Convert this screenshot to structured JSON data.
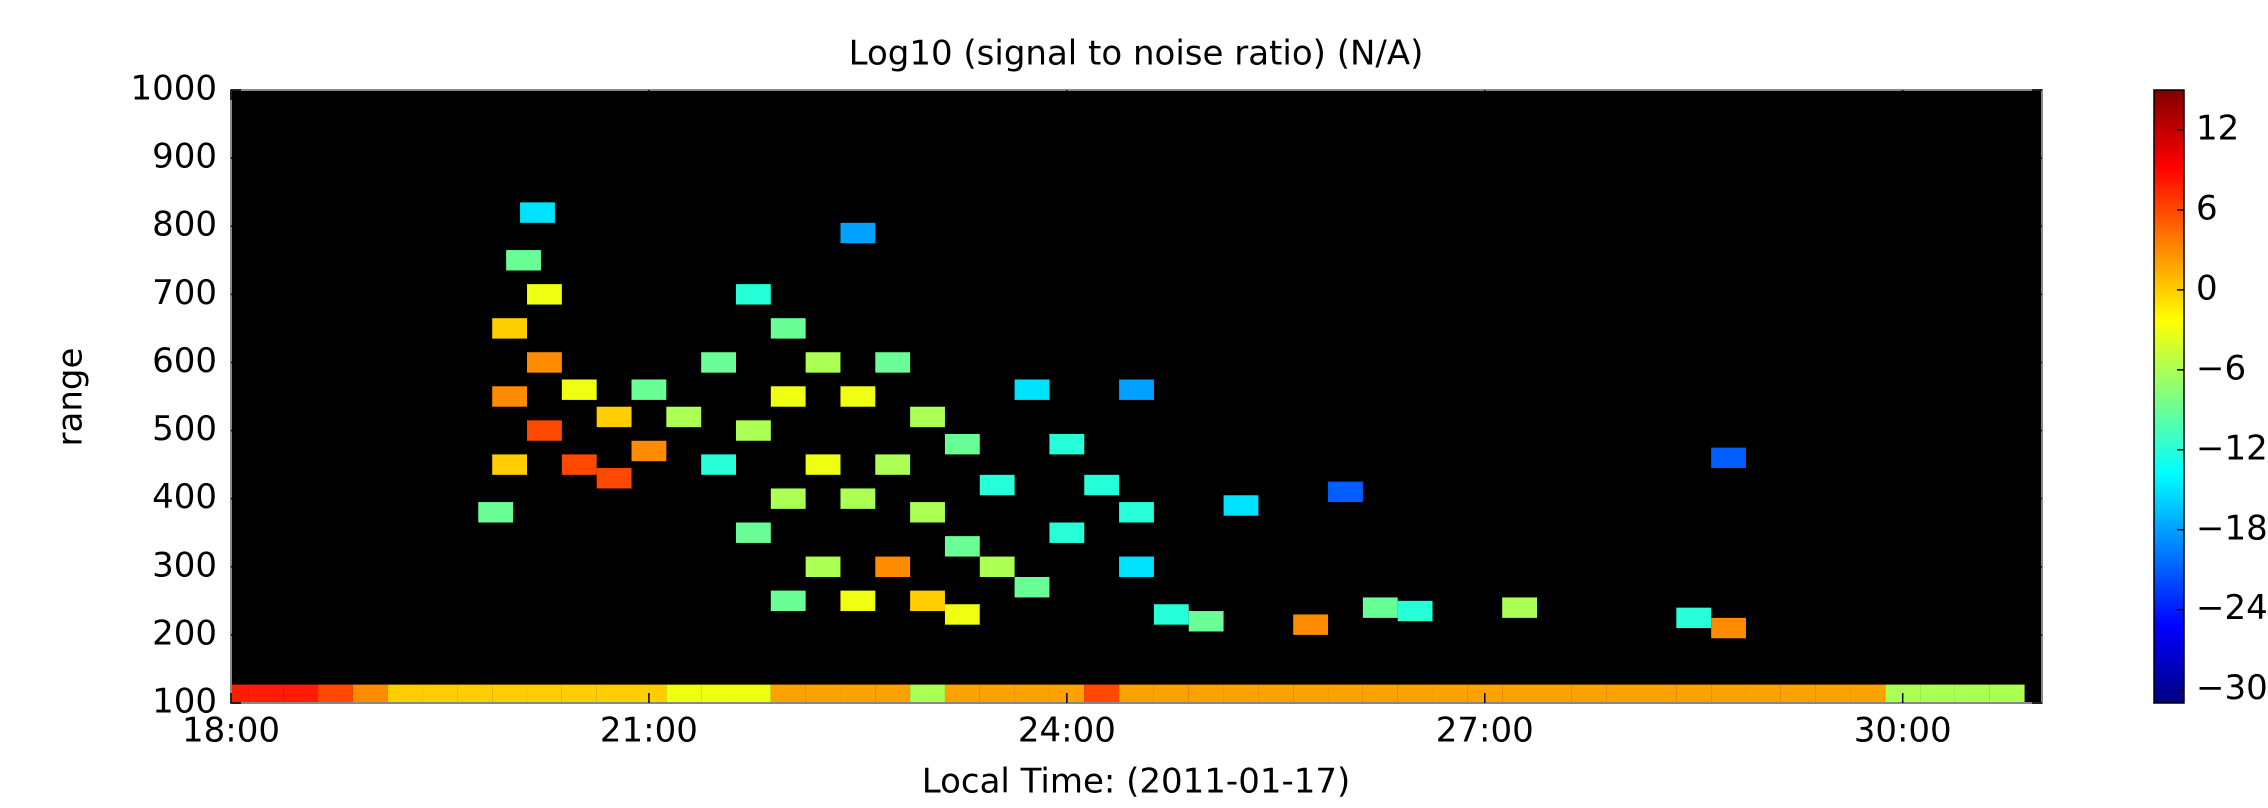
{
  "chart_data": {
    "type": "heatmap",
    "title": "Log10 (signal to noise ratio) (N/A)",
    "x_label": "Local Time: (2011-01-17)",
    "y_label": "range",
    "xlim": [
      18,
      31
    ],
    "xticks": [
      {
        "value": 18,
        "label": "18:00"
      },
      {
        "value": 21,
        "label": "21:00"
      },
      {
        "value": 24,
        "label": "24:00"
      },
      {
        "value": 27,
        "label": "27:00"
      },
      {
        "value": 30,
        "label": "30:00"
      }
    ],
    "ylim": [
      100,
      1000
    ],
    "yticks": [
      100,
      200,
      300,
      400,
      500,
      600,
      700,
      800,
      900,
      1000
    ],
    "colormap": "jet",
    "clim": [
      -31,
      15
    ],
    "cticks": [
      {
        "value": -30,
        "label": "−30"
      },
      {
        "value": -24,
        "label": "−24"
      },
      {
        "value": -18,
        "label": "−18"
      },
      {
        "value": -12,
        "label": "−12"
      },
      {
        "value": -6,
        "label": "−6"
      },
      0,
      6,
      12
    ],
    "background": "#000000",
    "x": [
      18,
      18.25,
      18.5,
      18.75,
      19,
      19.25,
      19.5,
      19.75,
      20,
      20.25,
      20.5,
      20.75,
      21,
      21.25,
      21.5,
      21.75,
      22,
      22.25,
      22.5,
      22.75,
      23,
      23.25,
      23.5,
      23.75,
      24,
      24.25,
      24.5,
      24.75,
      25,
      25.25,
      25.5,
      25.75,
      26,
      26.25,
      26.5,
      26.75,
      27,
      27.25,
      27.5,
      27.75,
      28,
      28.25,
      28.5,
      28.75,
      29,
      29.25,
      29.5,
      29.75,
      30,
      30.25,
      30.5,
      30.75,
      19.9,
      20,
      20,
      20,
      20.1,
      20.2,
      20.25,
      20.25,
      20.25,
      20.5,
      20.5,
      20.75,
      20.75,
      21,
      21,
      21.25,
      21.5,
      21.5,
      21.75,
      21.75,
      21.75,
      22,
      22,
      22,
      22,
      22.25,
      22.25,
      22.25,
      22.5,
      22.5,
      22.5,
      22.75,
      22.75,
      22.75,
      23,
      23,
      23,
      23.25,
      23.25,
      23.25,
      23.5,
      23.5,
      23.75,
      23.75,
      24,
      24,
      24.25,
      24.5,
      24.5,
      24.75,
      25,
      25.25,
      25.75,
      26.25,
      26.5,
      26,
      27.25,
      28.5,
      28.75,
      28.75,
      24.5,
      22.5
    ],
    "y": [
      112,
      112,
      112,
      112,
      112,
      112,
      112,
      112,
      112,
      112,
      112,
      112,
      112,
      112,
      112,
      112,
      112,
      112,
      112,
      112,
      112,
      112,
      112,
      112,
      112,
      112,
      112,
      112,
      112,
      112,
      112,
      112,
      112,
      112,
      112,
      112,
      112,
      112,
      112,
      112,
      112,
      112,
      112,
      112,
      112,
      112,
      112,
      112,
      112,
      112,
      112,
      112,
      380,
      450,
      550,
      650,
      750,
      820,
      500,
      600,
      700,
      450,
      560,
      430,
      520,
      470,
      560,
      520,
      600,
      450,
      350,
      500,
      700,
      250,
      400,
      550,
      650,
      300,
      450,
      600,
      250,
      400,
      550,
      300,
      450,
      600,
      250,
      380,
      520,
      230,
      330,
      480,
      300,
      420,
      270,
      560,
      350,
      480,
      420,
      300,
      380,
      230,
      220,
      390,
      215,
      240,
      235,
      410,
      240,
      225,
      210,
      460,
      560,
      790
    ],
    "values": [
      8,
      8,
      8,
      6,
      3,
      0,
      0,
      0,
      0,
      0,
      0,
      0,
      0,
      -3,
      -3,
      -3,
      2,
      2,
      2,
      2,
      -6,
      2,
      2,
      2,
      2,
      6,
      2,
      2,
      2,
      2,
      2,
      2,
      2,
      2,
      2,
      2,
      2,
      2,
      2,
      2,
      2,
      2,
      2,
      2,
      2,
      2,
      2,
      2,
      -6,
      -6,
      -6,
      -6,
      -9,
      0,
      3,
      0,
      -9,
      -15,
      6,
      3,
      -3,
      6,
      -3,
      6,
      0,
      3,
      -9,
      -6,
      -9,
      -12,
      -9,
      -6,
      -12,
      -9,
      -6,
      -3,
      -9,
      -6,
      -3,
      -6,
      -3,
      -6,
      -3,
      3,
      -6,
      -9,
      0,
      -6,
      -6,
      -3,
      -9,
      -9,
      -6,
      -12,
      -9,
      -15,
      -12,
      -12,
      -12,
      -15,
      -12,
      -12,
      -9,
      -15,
      3,
      -9,
      -12,
      -21,
      -6,
      -12,
      3,
      -21,
      -18,
      -18
    ]
  }
}
